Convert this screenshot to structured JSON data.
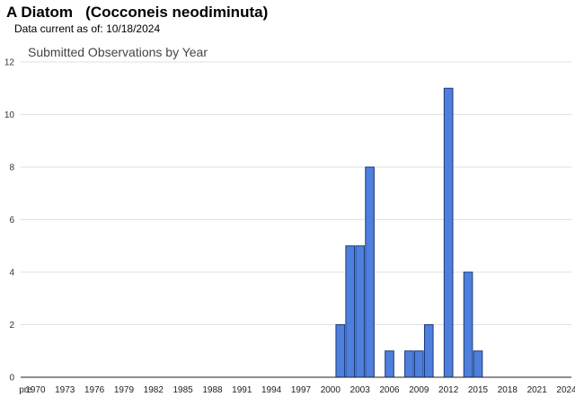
{
  "header": {
    "species_title": "A Diatom   (Cocconeis neodiminuta)",
    "data_current_label": "Data current as of:",
    "data_current_date": "10/18/2024"
  },
  "chart_data": {
    "type": "bar",
    "title": "Submitted Observations by Year",
    "xlabel": "",
    "ylabel": "",
    "ylim": [
      0,
      12
    ],
    "yticks": [
      0,
      2,
      4,
      6,
      8,
      10,
      12
    ],
    "grid": true,
    "legend": "none",
    "bar_color": "#4f7fdc",
    "bar_edge_color": "#1a3a7a",
    "categories": [
      "pre",
      "1970",
      "1971",
      "1972",
      "1973",
      "1974",
      "1975",
      "1976",
      "1977",
      "1978",
      "1979",
      "1980",
      "1981",
      "1982",
      "1983",
      "1984",
      "1985",
      "1986",
      "1987",
      "1988",
      "1989",
      "1990",
      "1991",
      "1992",
      "1993",
      "1994",
      "1995",
      "1996",
      "1997",
      "1998",
      "1999",
      "2000",
      "2001",
      "2002",
      "2003",
      "2004",
      "2005",
      "2006",
      "2007",
      "2008",
      "2009",
      "2010",
      "2011",
      "2012",
      "2013",
      "2014",
      "2015",
      "2016",
      "2017",
      "2018",
      "2019",
      "2020",
      "2021",
      "2022",
      "2023",
      "2024"
    ],
    "tick_labels": [
      "pre",
      "1970",
      "1973",
      "1976",
      "1979",
      "1982",
      "1985",
      "1988",
      "1991",
      "1994",
      "1997",
      "2000",
      "2003",
      "2006",
      "2009",
      "2012",
      "2015",
      "2018",
      "2021",
      "2024"
    ],
    "values": [
      0,
      0,
      0,
      0,
      0,
      0,
      0,
      0,
      0,
      0,
      0,
      0,
      0,
      0,
      0,
      0,
      0,
      0,
      0,
      0,
      0,
      0,
      0,
      0,
      0,
      0,
      0,
      0,
      0,
      0,
      0,
      0,
      2,
      5,
      5,
      8,
      0,
      1,
      0,
      1,
      1,
      2,
      0,
      11,
      0,
      4,
      1,
      0,
      0,
      0,
      0,
      0,
      0,
      0,
      0,
      0
    ]
  }
}
